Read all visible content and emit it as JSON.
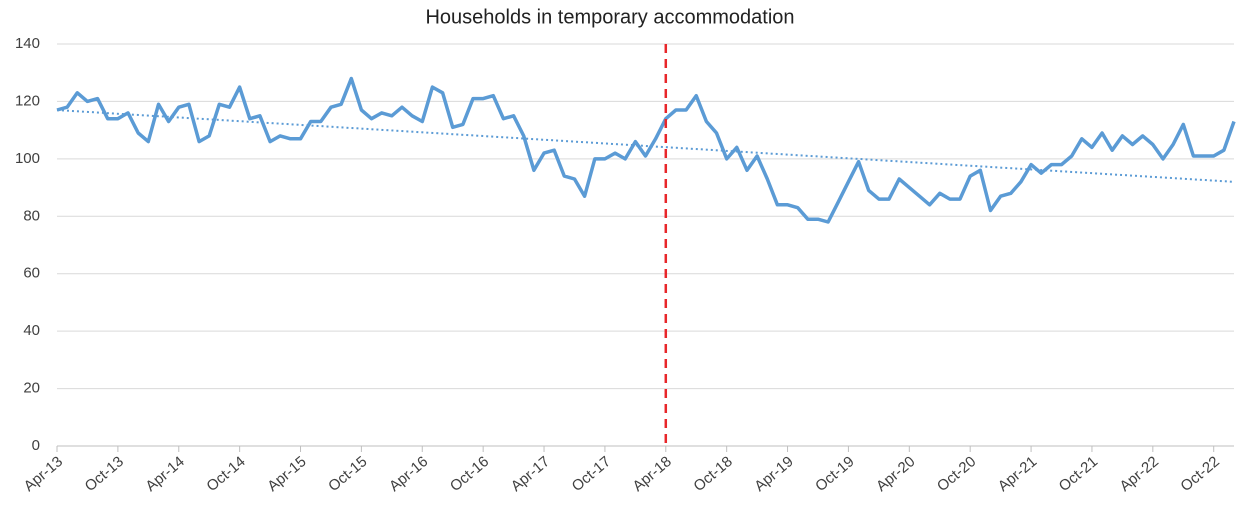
{
  "chart_data": {
    "type": "line",
    "title": "Households in temporary accommodation",
    "categories": [
      "Apr-13",
      null,
      null,
      null,
      null,
      null,
      "Oct-13",
      null,
      null,
      null,
      null,
      null,
      "Apr-14",
      null,
      null,
      null,
      null,
      null,
      "Oct-14",
      null,
      null,
      null,
      null,
      null,
      "Apr-15",
      null,
      null,
      null,
      null,
      null,
      "Oct-15",
      null,
      null,
      null,
      null,
      null,
      "Apr-16",
      null,
      null,
      null,
      null,
      null,
      "Oct-16",
      null,
      null,
      null,
      null,
      null,
      "Apr-17",
      null,
      null,
      null,
      null,
      null,
      "Oct-17",
      null,
      null,
      null,
      null,
      null,
      "Apr-18",
      null,
      null,
      null,
      null,
      null,
      "Oct-18",
      null,
      null,
      null,
      null,
      null,
      "Apr-19",
      null,
      null,
      null,
      null,
      null,
      "Oct-19",
      null,
      null,
      null,
      null,
      null,
      "Apr-20",
      null,
      null,
      null,
      null,
      null,
      "Oct-20",
      null,
      null,
      null,
      null,
      null,
      "Apr-21",
      null,
      null,
      null,
      null,
      null,
      "Oct-21",
      null,
      null,
      null,
      null,
      null,
      "Apr-22",
      null,
      null,
      null,
      null,
      null,
      "Oct-22",
      null,
      null
    ],
    "series": [
      {
        "color": "#5b9bd5",
        "values": [
          117,
          118,
          123,
          120,
          121,
          114,
          114,
          116,
          109,
          106,
          119,
          113,
          118,
          119,
          106,
          108,
          119,
          118,
          125,
          114,
          115,
          106,
          108,
          107,
          107,
          113,
          113,
          118,
          119,
          128,
          117,
          114,
          116,
          115,
          118,
          115,
          113,
          125,
          123,
          111,
          112,
          121,
          121,
          122,
          114,
          115,
          108,
          96,
          102,
          103,
          94,
          93,
          87,
          100,
          100,
          102,
          100,
          106,
          101,
          107,
          114,
          117,
          117,
          122,
          113,
          109,
          100,
          104,
          96,
          101,
          93,
          84,
          84,
          83,
          79,
          79,
          78,
          85,
          92,
          99,
          89,
          86,
          86,
          93,
          90,
          87,
          84,
          88,
          86,
          86,
          94,
          96,
          82,
          87,
          88,
          92,
          98,
          95,
          98,
          98,
          101,
          107,
          104,
          109,
          103,
          108,
          105,
          108,
          105,
          100,
          105,
          112,
          101,
          101,
          101,
          103,
          113
        ]
      }
    ],
    "trendline": {
      "color": "#5b9bd5",
      "values": [
        117,
        92
      ]
    },
    "vline": {
      "category": "Apr-18",
      "color": "#e8262a"
    },
    "ylim": [
      0,
      140
    ],
    "yticks": [
      0,
      20,
      40,
      60,
      80,
      100,
      120,
      140
    ],
    "grid": true
  }
}
